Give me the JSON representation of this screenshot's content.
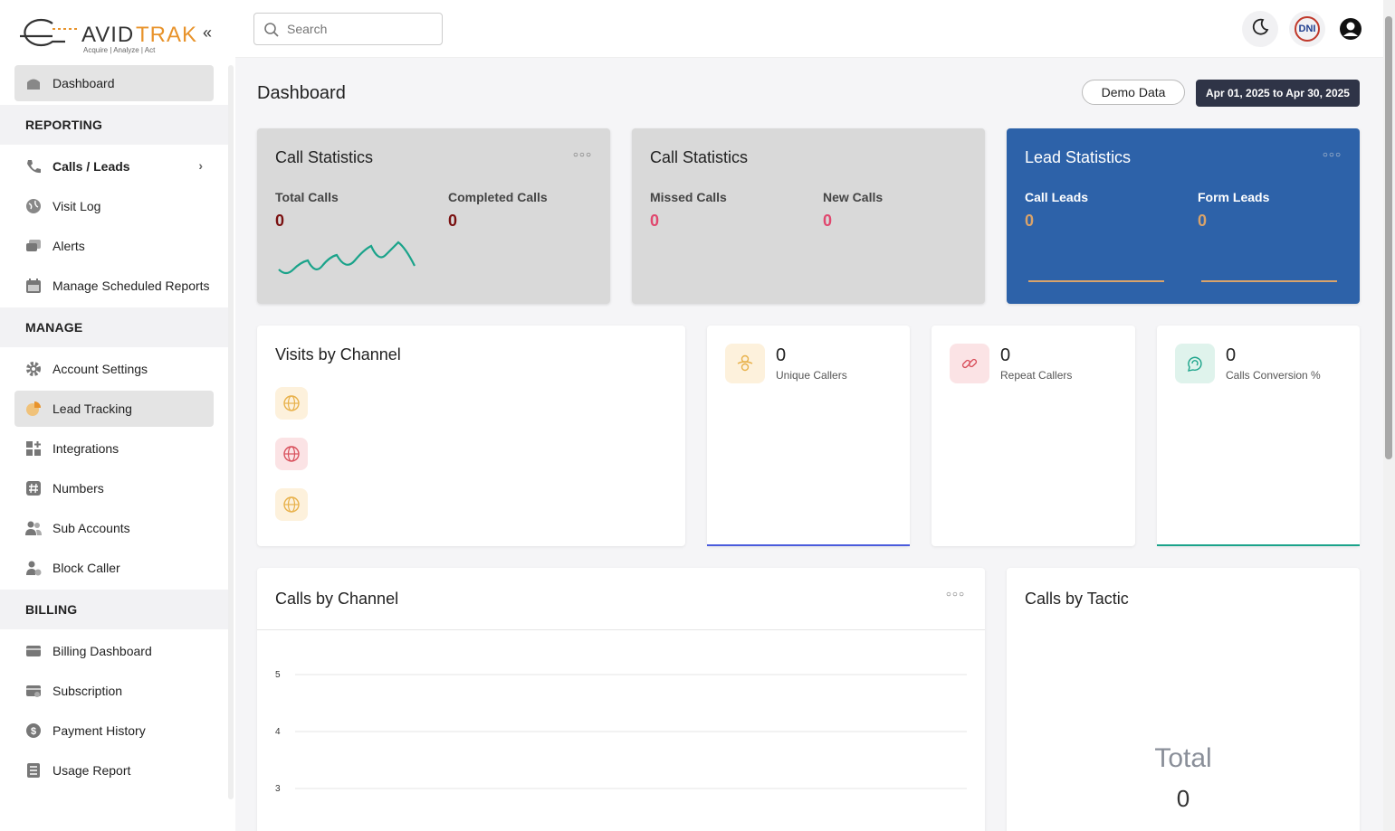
{
  "brand": {
    "name": "AVIDTRAK",
    "tagline": "Acquire  |  Analyze  |  Act",
    "accent": "#e8932b"
  },
  "sidebar": {
    "items_top": [
      {
        "label": "Dashboard",
        "icon": "home-icon"
      }
    ],
    "sections": [
      {
        "title": "REPORTING",
        "items": [
          {
            "label": "Calls / Leads",
            "icon": "phone-icon"
          },
          {
            "label": "Visit Log",
            "icon": "globe-icon"
          },
          {
            "label": "Alerts",
            "icon": "chat-icon"
          },
          {
            "label": "Manage Scheduled Reports",
            "icon": "calendar-icon"
          }
        ]
      },
      {
        "title": "MANAGE",
        "items": [
          {
            "label": "Account Settings",
            "icon": "gear-icon"
          },
          {
            "label": "Lead Tracking",
            "icon": "pie-icon"
          },
          {
            "label": "Integrations",
            "icon": "grid-plus-icon"
          },
          {
            "label": "Numbers",
            "icon": "hash-icon"
          },
          {
            "label": "Sub Accounts",
            "icon": "users-icon"
          },
          {
            "label": "Block Caller",
            "icon": "user-block-icon"
          }
        ]
      },
      {
        "title": "BILLING",
        "items": [
          {
            "label": "Billing Dashboard",
            "icon": "card-icon"
          },
          {
            "label": "Subscription",
            "icon": "card-clock-icon"
          },
          {
            "label": "Payment History",
            "icon": "dollar-icon"
          },
          {
            "label": "Usage Report",
            "icon": "list-icon"
          }
        ]
      }
    ]
  },
  "topbar": {
    "search_placeholder": "Search",
    "dni_label": "DNI"
  },
  "main": {
    "title": "Dashboard",
    "demo_label": "Demo Data",
    "date_range": "Apr 01, 2025 to Apr 30, 2025",
    "stat_cards": [
      {
        "title": "Call Statistics",
        "metrics": [
          {
            "label": "Total Calls",
            "value": "0"
          },
          {
            "label": "Completed Calls",
            "value": "0"
          }
        ]
      },
      {
        "title": "Call Statistics",
        "metrics": [
          {
            "label": "Missed Calls",
            "value": "0"
          },
          {
            "label": "New Calls",
            "value": "0"
          }
        ]
      },
      {
        "title": "Lead Statistics",
        "metrics": [
          {
            "label": "Call Leads",
            "value": "0"
          },
          {
            "label": "Form Leads",
            "value": "0"
          }
        ]
      }
    ],
    "visits_by_channel": {
      "title": "Visits by Channel"
    },
    "mini_stats": [
      {
        "value": "0",
        "label": "Unique Callers",
        "color": "#4a5bdc"
      },
      {
        "value": "0",
        "label": "Repeat Callers",
        "color": "#ffffff"
      },
      {
        "value": "0",
        "label": "Calls Conversion %",
        "color": "#1aa38a"
      }
    ],
    "calls_by_channel": {
      "title": "Calls by Channel",
      "y_ticks": [
        "5",
        "4",
        "3"
      ]
    },
    "calls_by_tactic": {
      "title": "Calls by Tactic",
      "total_label": "Total",
      "total_value": "0"
    }
  }
}
